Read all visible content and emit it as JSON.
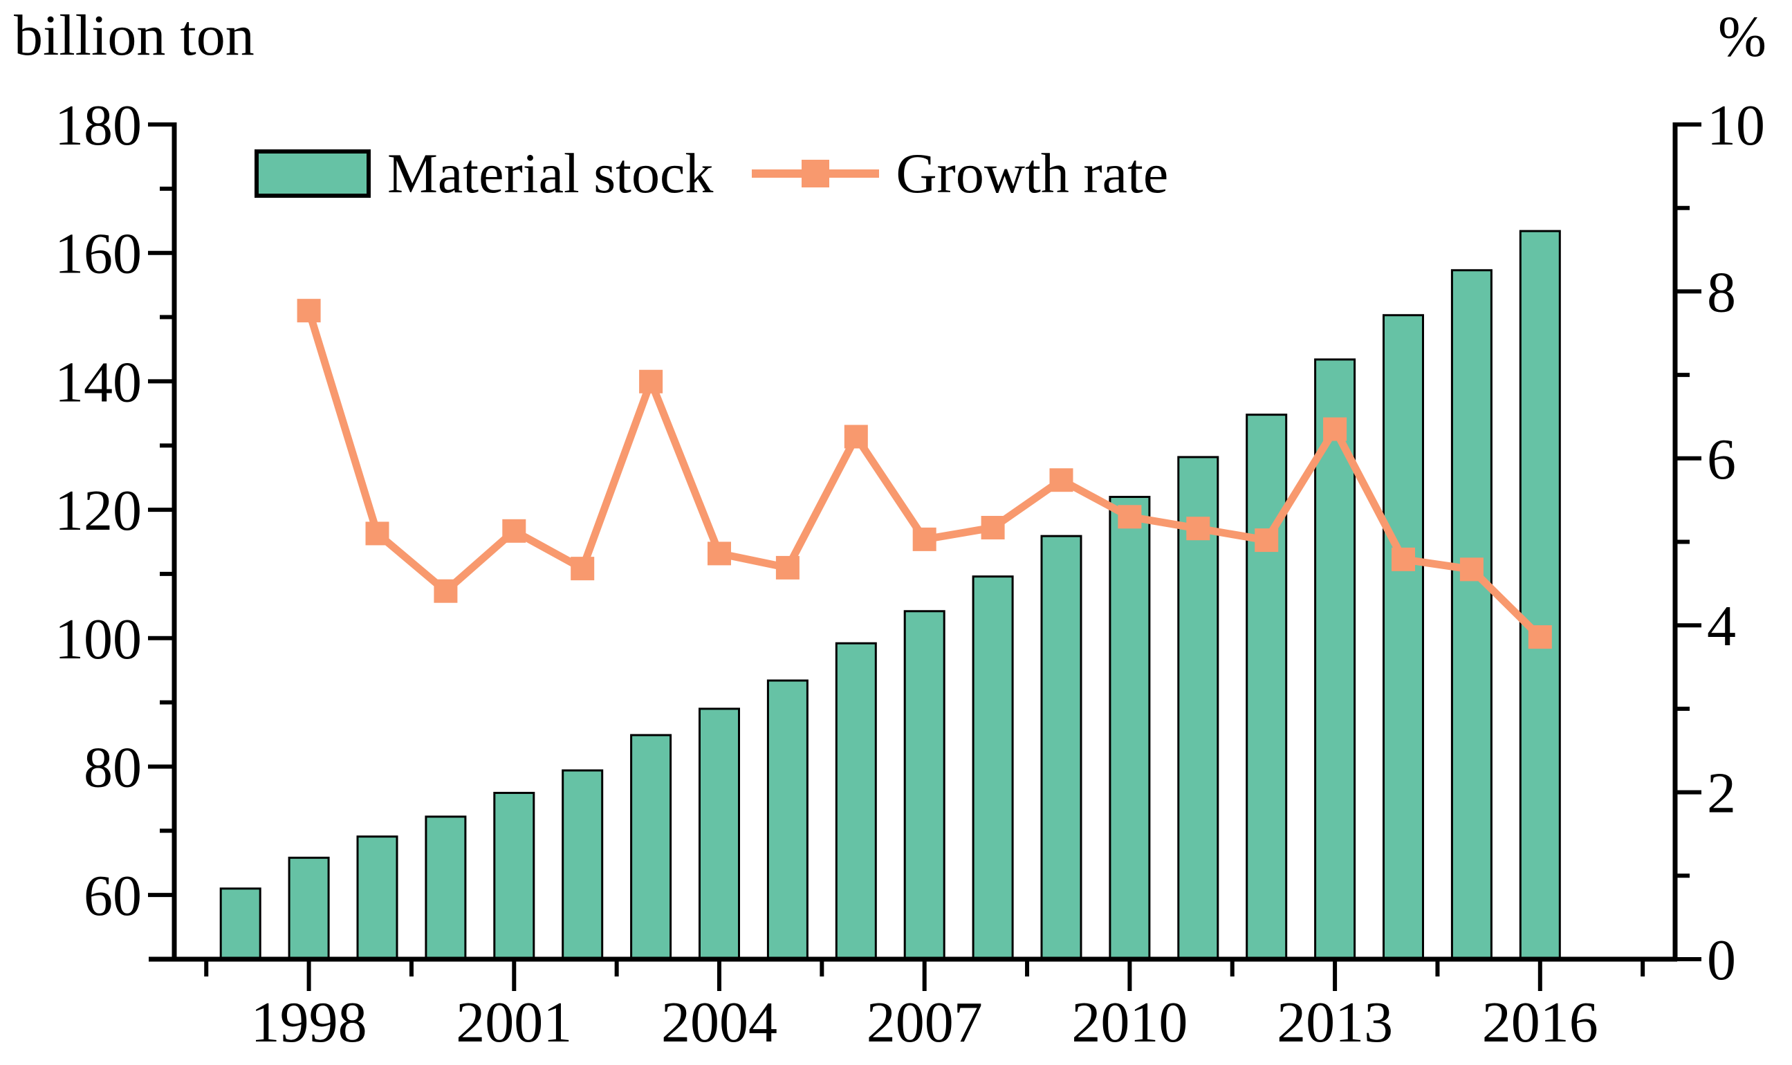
{
  "header": {
    "left_axis_unit": "billion ton",
    "right_axis_unit": "%"
  },
  "legend": [
    {
      "label": "Material stock",
      "type": "bar",
      "color": "#66C2A5"
    },
    {
      "label": "Growth rate",
      "type": "line",
      "color": "#F8996E"
    }
  ],
  "chart_data": {
    "type": "combo-bar-line",
    "title": "",
    "categories": [
      1997,
      1998,
      1999,
      2000,
      2001,
      2002,
      2003,
      2004,
      2005,
      2006,
      2007,
      2008,
      2009,
      2010,
      2011,
      2012,
      2013,
      2014,
      2015,
      2016
    ],
    "series": [
      {
        "name": "Material stock",
        "type": "bar",
        "axis": "left",
        "unit": "billion ton",
        "color": "#66C2A5",
        "outline": "#000000",
        "values": [
          61.0,
          65.8,
          69.1,
          72.2,
          75.9,
          79.4,
          84.9,
          89.0,
          93.4,
          99.2,
          104.2,
          109.6,
          115.9,
          122.0,
          128.2,
          134.8,
          143.4,
          150.3,
          157.3,
          163.4
        ]
      },
      {
        "name": "Growth rate",
        "type": "line",
        "axis": "right",
        "unit": "%",
        "color": "#F8996E",
        "marker": "square",
        "values": [
          null,
          7.77,
          5.1,
          4.41,
          5.13,
          4.68,
          6.92,
          4.86,
          4.69,
          6.26,
          5.03,
          5.17,
          5.74,
          5.3,
          5.16,
          5.02,
          6.35,
          4.79,
          4.67,
          3.86
        ]
      }
    ],
    "left_axis": {
      "label": "billion ton",
      "min": 50,
      "max": 180,
      "major_ticks": [
        60,
        80,
        100,
        120,
        140,
        160,
        180
      ],
      "minor_ticks": [
        70,
        90,
        110,
        130,
        150,
        170
      ]
    },
    "right_axis": {
      "label": "%",
      "min": 0,
      "max": 10,
      "major_ticks": [
        0,
        2,
        4,
        6,
        8,
        10
      ],
      "minor_ticks": [
        1,
        3,
        5,
        7,
        9
      ]
    },
    "x_axis": {
      "major_ticks": [
        1998,
        2001,
        2004,
        2007,
        2010,
        2013,
        2016
      ],
      "minor_ticks": [
        1996.5,
        1999.5,
        2002.5,
        2005.5,
        2008.5,
        2011.5,
        2014.5,
        2017.5
      ]
    },
    "grid": false,
    "legend_position": "top-left-inside"
  }
}
